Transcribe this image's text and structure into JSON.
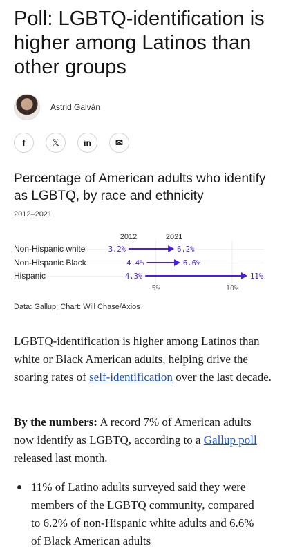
{
  "article": {
    "headline": "Poll: LGBTQ-identification is higher among Latinos than other groups",
    "author": "Astrid Galván"
  },
  "share": {
    "facebook_icon": "f",
    "x_icon": "𝕏",
    "linkedin_icon": "in",
    "email_icon": "✉"
  },
  "chart": {
    "title": "Percentage of American adults who identify as LGBTQ, by race and ethnicity",
    "subtitle": "2012–2021",
    "source": "Data: Gallup; Chart: Will Chase/Axios"
  },
  "chart_data": {
    "type": "dumbbell",
    "start_label": "2012",
    "end_label": "2021",
    "categories": [
      "Non-Hispanic white",
      "Non-Hispanic Black",
      "Hispanic"
    ],
    "start_values": [
      3.2,
      4.4,
      4.3
    ],
    "end_values": [
      6.2,
      6.6,
      11
    ],
    "start_value_labels": [
      "3.2%",
      "4.4%",
      "4.3%"
    ],
    "end_value_labels": [
      "6.2%",
      "6.6%",
      "11%"
    ],
    "x_ticks": [
      5,
      10
    ],
    "x_tick_labels": [
      "5%",
      "10%"
    ],
    "xlim": [
      3.2,
      11
    ],
    "color": "#4b1fd6"
  },
  "body": {
    "p1_before": "LGBTQ-identification is higher among Latinos than white or Black American adults, helping drive the soaring rates of ",
    "p1_link": "self-identification",
    "p1_after": " over the last decade.",
    "p2_bold": "By the numbers:",
    "p2_before": " A record 7% of American adults now identify as LGBTQ, according to a ",
    "p2_link": "Gallup poll ",
    "p2_after": "released last month.",
    "bullet1": "11% of Latino adults surveyed said they were members of the LGBTQ community, compared to 6.2% of non-Hispanic white adults and 6.6% of Black American adults"
  }
}
